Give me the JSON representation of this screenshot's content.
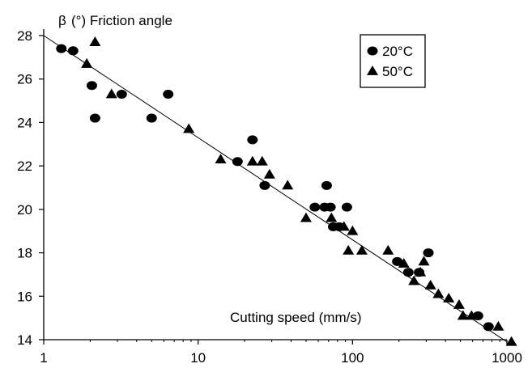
{
  "chart_data": {
    "type": "scatter",
    "xscale": "log",
    "xlim": [
      1,
      1000
    ],
    "ylim": [
      14,
      28
    ],
    "xticks": [
      1,
      10,
      100,
      1000
    ],
    "xtick_labels": [
      "1",
      "10",
      "100",
      "1000"
    ],
    "yticks": [
      14,
      16,
      18,
      20,
      22,
      24,
      26,
      28
    ],
    "ytick_labels": [
      "14",
      "16",
      "18",
      "20",
      "22",
      "24",
      "26",
      "28"
    ],
    "ylabel_symbol": "β",
    "ylabel": "(°) Friction angle",
    "xlabel": "Cutting speed (mm/s)",
    "grid": false,
    "legend_position": "top-right",
    "trendline": {
      "x": [
        1,
        1000
      ],
      "y": [
        28.0,
        13.9
      ]
    },
    "series": [
      {
        "name": "20°C",
        "marker": "circle",
        "color": "#000000",
        "points": [
          [
            1.3,
            27.4
          ],
          [
            1.55,
            27.3
          ],
          [
            2.05,
            25.7
          ],
          [
            2.15,
            24.2
          ],
          [
            3.2,
            25.3
          ],
          [
            5.0,
            24.2
          ],
          [
            6.4,
            25.3
          ],
          [
            18.0,
            22.2
          ],
          [
            22.5,
            23.2
          ],
          [
            27.0,
            21.1
          ],
          [
            57.0,
            20.1
          ],
          [
            66.0,
            20.1
          ],
          [
            68.0,
            21.1
          ],
          [
            72.0,
            20.1
          ],
          [
            75.0,
            19.2
          ],
          [
            82.0,
            19.2
          ],
          [
            92.0,
            20.1
          ],
          [
            195.0,
            17.6
          ],
          [
            230.0,
            17.1
          ],
          [
            270.0,
            17.1
          ],
          [
            310.0,
            18.0
          ],
          [
            650.0,
            15.1
          ],
          [
            760.0,
            14.6
          ]
        ]
      },
      {
        "name": "50°C",
        "marker": "triangle",
        "color": "#000000",
        "points": [
          [
            1.9,
            26.7
          ],
          [
            2.15,
            27.7
          ],
          [
            2.75,
            25.3
          ],
          [
            8.7,
            23.7
          ],
          [
            14.0,
            22.3
          ],
          [
            22.5,
            22.2
          ],
          [
            26.0,
            22.2
          ],
          [
            29.0,
            21.6
          ],
          [
            38.0,
            21.1
          ],
          [
            50.0,
            19.6
          ],
          [
            73.0,
            19.6
          ],
          [
            88.0,
            19.2
          ],
          [
            94.0,
            18.1
          ],
          [
            100.0,
            19.0
          ],
          [
            115.0,
            18.1
          ],
          [
            170.0,
            18.1
          ],
          [
            215.0,
            17.5
          ],
          [
            250.0,
            16.7
          ],
          [
            275.0,
            17.1
          ],
          [
            290.0,
            17.6
          ],
          [
            320.0,
            16.5
          ],
          [
            360.0,
            16.1
          ],
          [
            420.0,
            15.9
          ],
          [
            490.0,
            15.6
          ],
          [
            520.0,
            15.1
          ],
          [
            590.0,
            15.1
          ],
          [
            880.0,
            14.6
          ],
          [
            1070.0,
            13.9
          ]
        ]
      }
    ]
  }
}
